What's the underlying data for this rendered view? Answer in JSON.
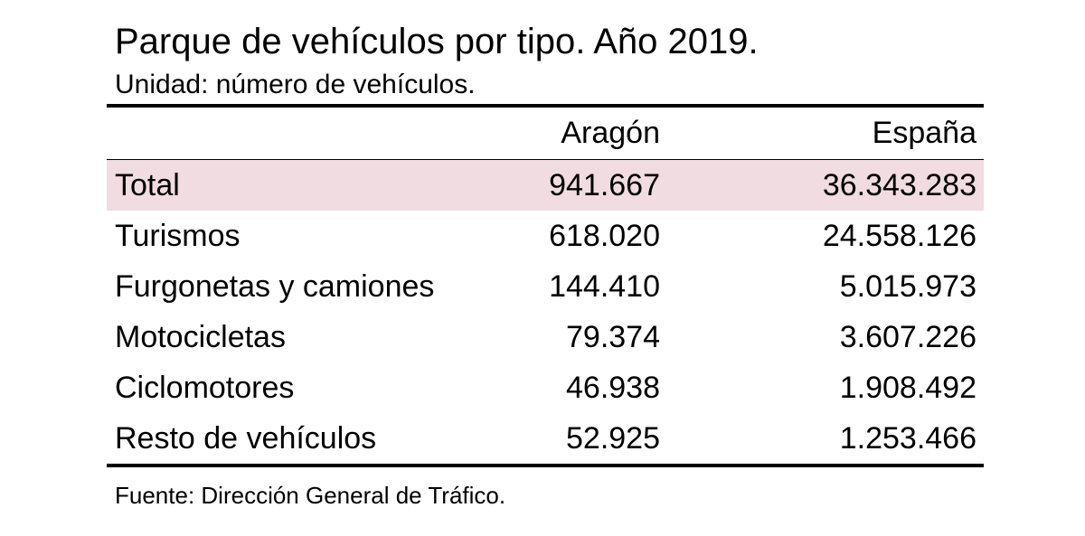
{
  "title": "Parque de vehículos por tipo. Año 2019.",
  "subtitle": "Unidad: número de vehículos.",
  "columns": [
    "",
    "Aragón",
    "España"
  ],
  "rows": [
    {
      "label": "Total",
      "aragon": "941.667",
      "espana": "36.343.283"
    },
    {
      "label": "Turismos",
      "aragon": "618.020",
      "espana": "24.558.126"
    },
    {
      "label": "Furgonetas y camiones",
      "aragon": "144.410",
      "espana": "5.015.973"
    },
    {
      "label": "Motocicletas",
      "aragon": "79.374",
      "espana": "3.607.226"
    },
    {
      "label": "Ciclomotores",
      "aragon": "46.938",
      "espana": "1.908.492"
    },
    {
      "label": "Resto de vehículos",
      "aragon": "52.925",
      "espana": "1.253.466"
    }
  ],
  "source": "Fuente: Dirección General de Tráfico.",
  "colors": {
    "highlight_row": "#f0dce1",
    "rule": "#000000"
  }
}
